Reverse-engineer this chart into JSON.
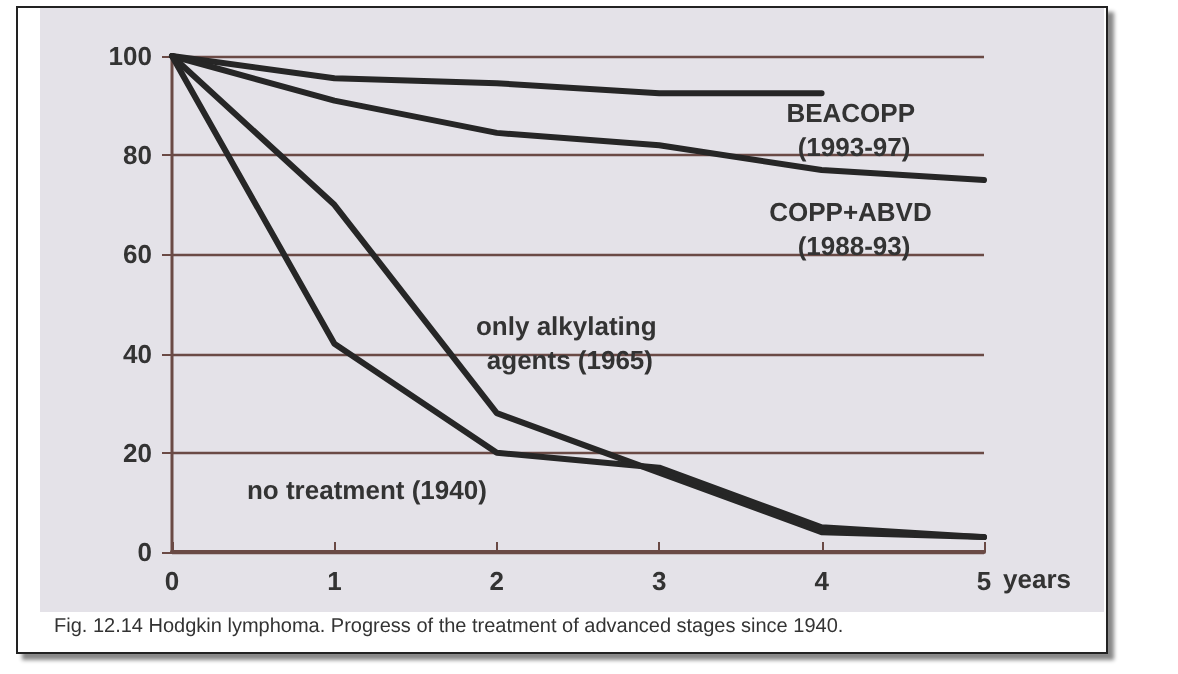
{
  "chart_data": {
    "type": "line",
    "xlabel": "years",
    "x": [
      0,
      1,
      2,
      3,
      4,
      5
    ],
    "series": [
      {
        "name": "BEACOPP (1993-97)",
        "color": "#262626",
        "values": [
          100,
          95.5,
          94.5,
          92.5,
          92.5,
          null
        ]
      },
      {
        "name": "COPP+ABVD (1988-93)",
        "color": "#262626",
        "values": [
          100,
          91,
          84.5,
          82,
          77,
          75
        ]
      },
      {
        "name": "only alkylating agents (1965)",
        "color": "#262626",
        "values": [
          100,
          70,
          28,
          16,
          4,
          3
        ]
      },
      {
        "name": "no treatment (1940)",
        "color": "#262626",
        "values": [
          100,
          42,
          20,
          17,
          5,
          3
        ]
      }
    ],
    "xlim": [
      0,
      5
    ],
    "xticks": [
      0,
      1,
      2,
      3,
      4,
      5
    ],
    "ylim": [
      0,
      100
    ],
    "yticks": [
      0,
      20,
      40,
      60,
      80,
      100
    ],
    "grid": "y",
    "legend": false,
    "marker": "none",
    "line_style": "solid",
    "annotations": [
      "Fig. 12.14 Hodgkin lymphoma. Progress of the treatment of advanced stages since 1940."
    ]
  }
}
